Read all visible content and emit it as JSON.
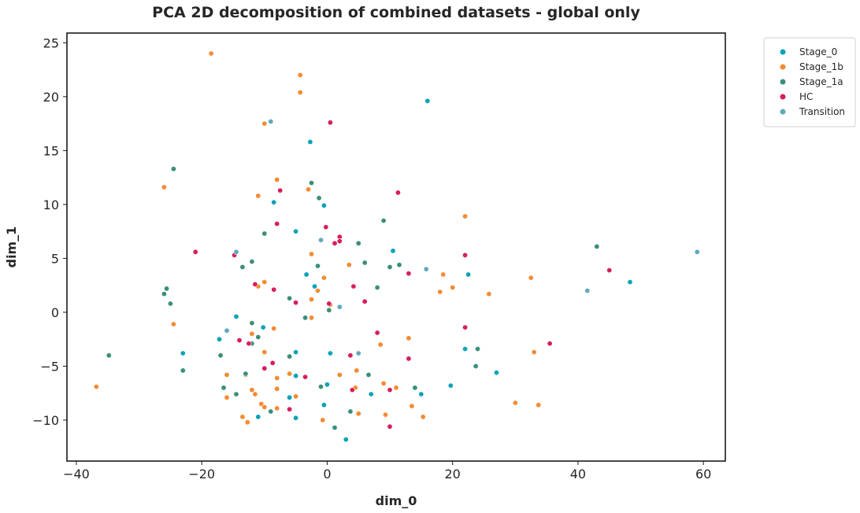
{
  "chart_data": {
    "type": "scatter",
    "title": "PCA 2D decomposition of combined datasets - global only",
    "xlabel": "dim_0",
    "ylabel": "dim_1",
    "xlim": [
      -41.5,
      63.5
    ],
    "ylim": [
      -13.8,
      25.9
    ],
    "xticks": [
      -40,
      -20,
      0,
      20,
      40,
      60
    ],
    "yticks": [
      -10,
      -5,
      0,
      5,
      10,
      15,
      20,
      25
    ],
    "grid": false,
    "legend_position": "outside-top-right",
    "series": [
      {
        "name": "Stage_0",
        "color": "#0aa3b8",
        "points": [
          [
            16,
            19.6
          ],
          [
            -2.7,
            15.8
          ],
          [
            -8.5,
            10.2
          ],
          [
            -0.5,
            9.9
          ],
          [
            -5,
            7.5
          ],
          [
            10.5,
            5.7
          ],
          [
            -3.3,
            3.5
          ],
          [
            -2,
            2.4
          ],
          [
            22.5,
            3.5
          ],
          [
            48.3,
            2.8
          ],
          [
            -14.5,
            -0.4
          ],
          [
            -10.2,
            -1.4
          ],
          [
            -17.2,
            -2.5
          ],
          [
            -23,
            -3.8
          ],
          [
            -5,
            -3.7
          ],
          [
            0.5,
            -3.8
          ],
          [
            22,
            -3.4
          ],
          [
            -13,
            -5.8
          ],
          [
            -5,
            -5.9
          ],
          [
            0,
            -6.7
          ],
          [
            19.7,
            -6.8
          ],
          [
            27,
            -5.6
          ],
          [
            7,
            -7.6
          ],
          [
            15,
            -7.6
          ],
          [
            -6,
            -7.9
          ],
          [
            -0.5,
            -8.6
          ],
          [
            -11,
            -9.7
          ],
          [
            -5,
            -9.8
          ],
          [
            3,
            -11.8
          ]
        ]
      },
      {
        "name": "Stage_1b",
        "color": "#f28c33",
        "points": [
          [
            -18.5,
            24
          ],
          [
            -4.3,
            22
          ],
          [
            -4.3,
            20.4
          ],
          [
            -10,
            17.5
          ],
          [
            -26,
            11.6
          ],
          [
            -8,
            12.3
          ],
          [
            -11,
            10.8
          ],
          [
            -3,
            11.4
          ],
          [
            22,
            8.9
          ],
          [
            -2.5,
            5.4
          ],
          [
            3.5,
            4.4
          ],
          [
            -10,
            2.8
          ],
          [
            -0.5,
            3.2
          ],
          [
            -11,
            2.4
          ],
          [
            -1.5,
            2
          ],
          [
            18.5,
            3.5
          ],
          [
            18,
            1.9
          ],
          [
            20,
            2.3
          ],
          [
            25.8,
            1.7
          ],
          [
            32.5,
            3.2
          ],
          [
            -2.5,
            1.2
          ],
          [
            -6,
            1.3
          ],
          [
            0.5,
            0.7
          ],
          [
            -24.5,
            -1.1
          ],
          [
            -8.5,
            -1.5
          ],
          [
            -12,
            -1
          ],
          [
            -12,
            -2
          ],
          [
            -2.5,
            -0.5
          ],
          [
            -10,
            -3.7
          ],
          [
            8.5,
            -3
          ],
          [
            13,
            -2.4
          ],
          [
            33,
            -3.7
          ],
          [
            -16,
            -5.8
          ],
          [
            -13,
            -5.8
          ],
          [
            -6,
            -5.7
          ],
          [
            -8,
            -6.1
          ],
          [
            2,
            -5.8
          ],
          [
            4.7,
            -5.4
          ],
          [
            -16,
            -7.9
          ],
          [
            -12,
            -7.2
          ],
          [
            -11.5,
            -7.6
          ],
          [
            -8,
            -7.1
          ],
          [
            4.5,
            -7
          ],
          [
            9,
            -6.6
          ],
          [
            11,
            -7
          ],
          [
            -10.5,
            -8.5
          ],
          [
            -10,
            -8.8
          ],
          [
            -8,
            -8.9
          ],
          [
            -5,
            -7.8
          ],
          [
            5,
            -9.4
          ],
          [
            9.3,
            -9.5
          ],
          [
            13.5,
            -8.7
          ],
          [
            15.3,
            -9.7
          ],
          [
            30,
            -8.4
          ],
          [
            33.7,
            -8.6
          ],
          [
            -13.5,
            -9.7
          ],
          [
            -12.7,
            -10.2
          ],
          [
            -0.7,
            -10
          ],
          [
            -36.8,
            -6.9
          ]
        ]
      },
      {
        "name": "Stage_1a",
        "color": "#3a8f7a",
        "points": [
          [
            -24.5,
            13.3
          ],
          [
            -2.5,
            12
          ],
          [
            -1.3,
            10.6
          ],
          [
            9,
            8.5
          ],
          [
            -10,
            7.3
          ],
          [
            5,
            6.4
          ],
          [
            43,
            6.1
          ],
          [
            -12,
            4.7
          ],
          [
            -13.5,
            4.2
          ],
          [
            6,
            4.6
          ],
          [
            -1.5,
            4.3
          ],
          [
            10,
            4.2
          ],
          [
            11.5,
            4.4
          ],
          [
            -26,
            1.7
          ],
          [
            -25.6,
            2.2
          ],
          [
            -25,
            0.8
          ],
          [
            -6,
            1.3
          ],
          [
            0.3,
            0.2
          ],
          [
            -3.5,
            -0.5
          ],
          [
            8,
            2.3
          ],
          [
            -12,
            -1
          ],
          [
            -11,
            -2.3
          ],
          [
            -12,
            -2.9
          ],
          [
            -17,
            -4
          ],
          [
            -23,
            -5.4
          ],
          [
            -34.8,
            -4
          ],
          [
            -13,
            -5.7
          ],
          [
            -6,
            -4.1
          ],
          [
            6.6,
            -5.8
          ],
          [
            24,
            -3.4
          ],
          [
            23.7,
            -5
          ],
          [
            -16.5,
            -7
          ],
          [
            -14.5,
            -7.6
          ],
          [
            -1,
            -6.9
          ],
          [
            14,
            -7
          ],
          [
            -9,
            -9.2
          ],
          [
            1.2,
            -10.7
          ],
          [
            3.7,
            -9.2
          ]
        ]
      },
      {
        "name": "HC",
        "color": "#d81e5b",
        "points": [
          [
            0.5,
            17.6
          ],
          [
            11.3,
            11.1
          ],
          [
            -7.5,
            11.3
          ],
          [
            -8,
            8.2
          ],
          [
            -0.2,
            7.9
          ],
          [
            2,
            7
          ],
          [
            2,
            6.6
          ],
          [
            1.2,
            6.4
          ],
          [
            -21,
            5.6
          ],
          [
            -14.8,
            5.3
          ],
          [
            22,
            5.3
          ],
          [
            45,
            3.9
          ],
          [
            13,
            3.6
          ],
          [
            -11.5,
            2.6
          ],
          [
            -8.5,
            2.1
          ],
          [
            4.2,
            2.4
          ],
          [
            6,
            1
          ],
          [
            -5,
            0.9
          ],
          [
            0.3,
            0.8
          ],
          [
            22,
            -1.4
          ],
          [
            8,
            -1.9
          ],
          [
            -14,
            -2.6
          ],
          [
            -12.5,
            -2.9
          ],
          [
            35.5,
            -2.9
          ],
          [
            13,
            -4.3
          ],
          [
            3.7,
            -4
          ],
          [
            -8.7,
            -4.7
          ],
          [
            -10,
            -5.2
          ],
          [
            -3.5,
            -6
          ],
          [
            4,
            -7.2
          ],
          [
            10,
            -7.2
          ],
          [
            -6,
            -9
          ],
          [
            10,
            -10.6
          ]
        ]
      },
      {
        "name": "Transition",
        "color": "#5fa9bd",
        "points": [
          [
            -9,
            17.7
          ],
          [
            -14.5,
            5.6
          ],
          [
            15.8,
            4
          ],
          [
            -1,
            6.7
          ],
          [
            2,
            0.5
          ],
          [
            41.5,
            2
          ],
          [
            59,
            5.6
          ],
          [
            -16,
            -1.7
          ],
          [
            5,
            -3.8
          ]
        ]
      }
    ]
  }
}
